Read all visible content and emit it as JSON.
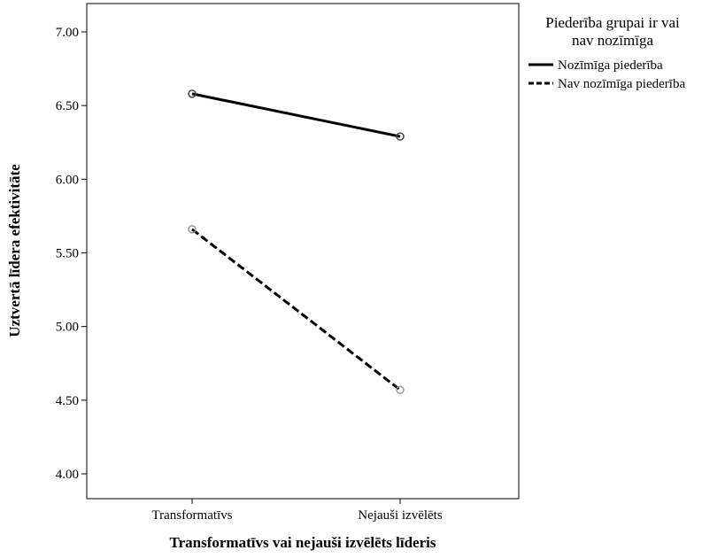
{
  "chart_data": {
    "type": "line",
    "title": "",
    "xlabel": "Transformatīvs vai nejauši izvēlēts līderis",
    "ylabel": "Uztvertā līdera efektivitāte",
    "categories": [
      "Transformatīvs",
      "Nejauši izvēlēts"
    ],
    "ylim": [
      4.0,
      7.0
    ],
    "yticks": [
      4.0,
      4.5,
      5.0,
      5.5,
      6.0,
      6.5,
      7.0
    ],
    "ytick_labels": [
      "4.00",
      "4.50",
      "5.00",
      "5.50",
      "6.00",
      "6.50",
      "7.00"
    ],
    "grid": false,
    "legend": {
      "title": "Piederība grupai ir vai nav nozīmīga",
      "title_lines": [
        "Piederība grupai ir vai",
        "nav nozīmīga"
      ],
      "placement": "outside-top-right"
    },
    "series": [
      {
        "name": "Nozīmīga piederība",
        "values": [
          6.58,
          6.29
        ],
        "line_style": "solid",
        "marker_color": "#444444"
      },
      {
        "name": "Nav nozīmīga piederība",
        "values": [
          5.66,
          4.57
        ],
        "line_style": "dashed",
        "marker_color": "#999999"
      }
    ]
  }
}
